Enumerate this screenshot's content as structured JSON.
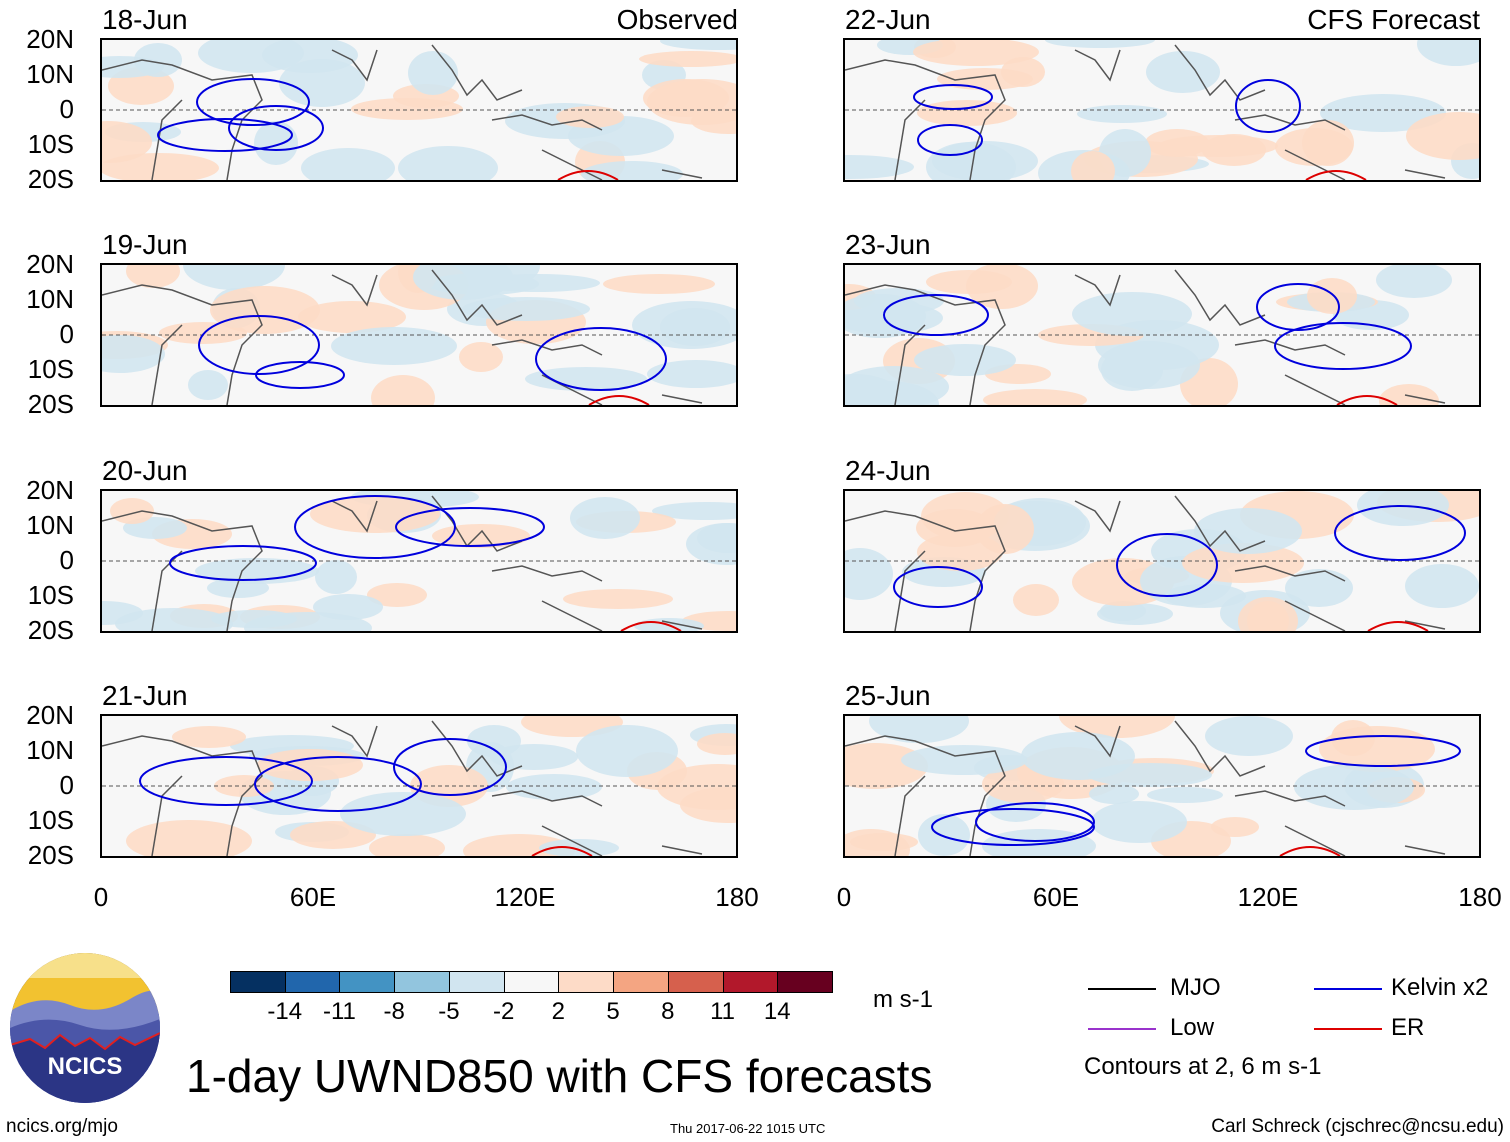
{
  "header": {
    "left_label": "Observed",
    "right_label": "CFS Forecast"
  },
  "panels": {
    "left": [
      "18-Jun",
      "19-Jun",
      "20-Jun",
      "21-Jun"
    ],
    "right": [
      "22-Jun",
      "23-Jun",
      "24-Jun",
      "25-Jun"
    ]
  },
  "axes": {
    "lat_ticks": [
      "20N",
      "10N",
      "0",
      "10S",
      "20S"
    ],
    "lon_ticks": [
      "0",
      "60E",
      "120E",
      "180"
    ]
  },
  "colorbar": {
    "unit": "m s-1",
    "ticks": [
      "-14",
      "-11",
      "-8",
      "-5",
      "-2",
      "2",
      "5",
      "8",
      "11",
      "14"
    ],
    "colors": [
      "#053061",
      "#2166ac",
      "#4393c3",
      "#92c5de",
      "#d1e5f0",
      "#f7f7f7",
      "#fddbc7",
      "#f4a582",
      "#d6604d",
      "#b2182b",
      "#67001f"
    ]
  },
  "legend": {
    "items": [
      {
        "label": "MJO",
        "color": "#000000"
      },
      {
        "label": "Kelvin x2",
        "color": "#0000dd"
      },
      {
        "label": "Low",
        "color": "#9933cc"
      },
      {
        "label": "ER",
        "color": "#dd0000"
      }
    ],
    "note": "Contours at 2, 6 m s-1"
  },
  "title": "1-day UWND850 with CFS forecasts",
  "footer": {
    "logo_text": "NCICS",
    "url": "ncics.org/mjo",
    "timestamp": "Thu 2017-06-22 1015 UTC",
    "credit": "Carl Schreck (cjschrec@ncsu.edu)"
  }
}
